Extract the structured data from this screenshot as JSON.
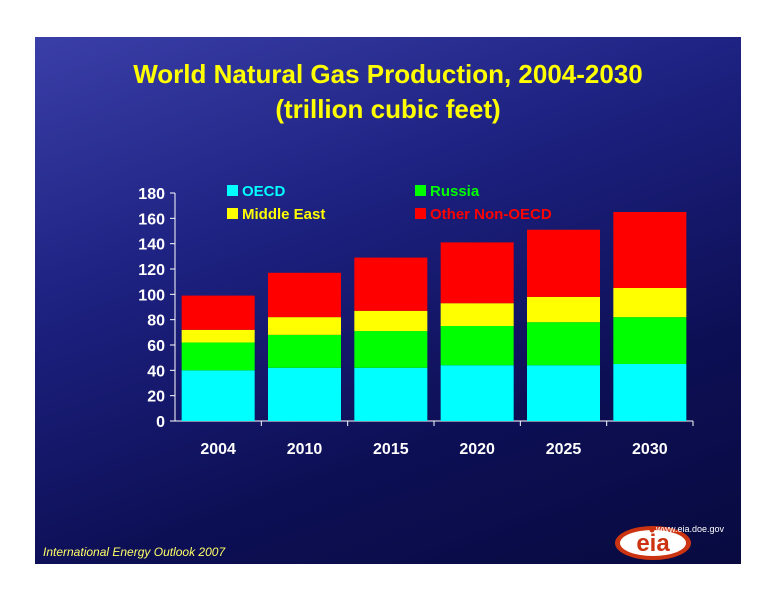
{
  "title_line1": "World Natural Gas Production, 2004-2030",
  "title_line2": "(trillion cubic feet)",
  "footer": "International Energy Outlook 2007",
  "logo": {
    "text": "eia",
    "url": "www.eia.doe.gov"
  },
  "colors": {
    "OECD": "#00ffff",
    "Russia": "#00ff00",
    "Middle East": "#ffff00",
    "Other Non-OECD": "#ff0000"
  },
  "chart_data": {
    "type": "bar",
    "stacked": true,
    "title": "World Natural Gas Production, 2004-2030",
    "subtitle": "(trillion cubic feet)",
    "xlabel": "",
    "ylabel": "",
    "ylim": [
      0,
      180
    ],
    "yticks": [
      0,
      20,
      40,
      60,
      80,
      100,
      120,
      140,
      160,
      180
    ],
    "categories": [
      "2004",
      "2010",
      "2015",
      "2020",
      "2025",
      "2030"
    ],
    "series": [
      {
        "name": "OECD",
        "values": [
          40,
          42,
          42,
          44,
          44,
          45
        ]
      },
      {
        "name": "Russia",
        "values": [
          22,
          26,
          29,
          31,
          34,
          37
        ]
      },
      {
        "name": "Middle East",
        "values": [
          10,
          14,
          16,
          18,
          20,
          23
        ]
      },
      {
        "name": "Other Non-OECD",
        "values": [
          27,
          35,
          42,
          48,
          53,
          60
        ]
      }
    ],
    "legend": [
      "OECD",
      "Russia",
      "Middle East",
      "Other Non-OECD"
    ],
    "legend_position": "top",
    "grid": false
  }
}
